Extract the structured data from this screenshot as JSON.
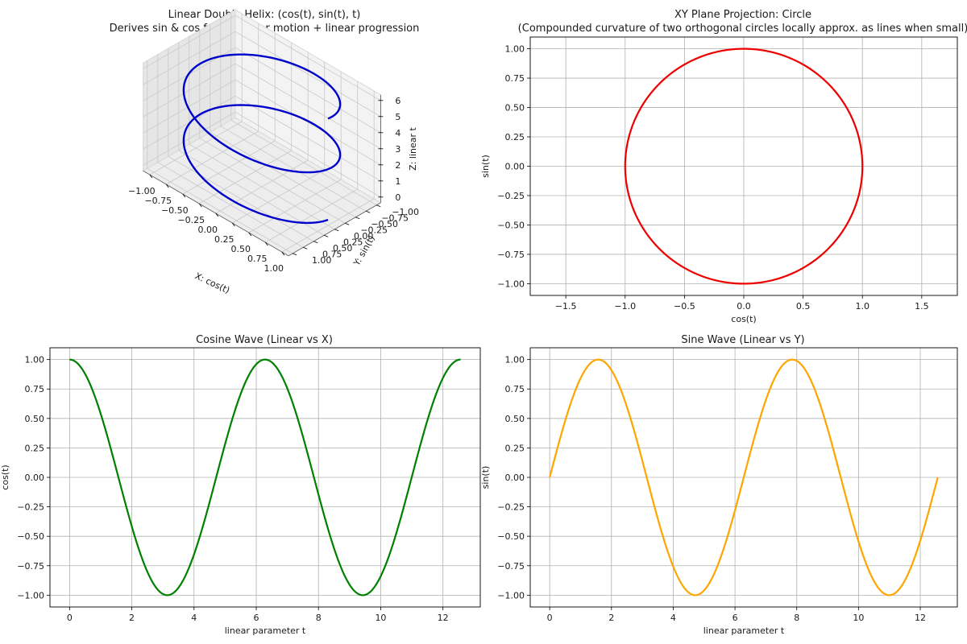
{
  "chart_data": [
    {
      "type": "line3d",
      "title": "Linear Double Helix: (cos(t), sin(t), t)",
      "subtitle": "Derives sin & cos from circular motion + linear progression",
      "xlabel": "X: cos(t)",
      "ylabel": "Y: sin(t)",
      "zlabel": "Z: linear t",
      "x_ticks": [
        "−1.00",
        "−0.75",
        "−0.50",
        "−0.25",
        "0.00",
        "0.25",
        "0.50",
        "0.75",
        "1.00"
      ],
      "y_ticks": [
        "−1.00",
        "−0.75",
        "−0.50",
        "−0.25",
        "0.00",
        "0.25",
        "0.50",
        "0.75",
        "1.00"
      ],
      "z_ticks": [
        "0",
        "1",
        "2",
        "3",
        "4",
        "5",
        "6"
      ],
      "t_range": [
        0,
        12.566
      ],
      "z_scale": 0.5,
      "color": "#0000cc",
      "series": "x = cos(t), y = sin(t), z = t/2"
    },
    {
      "type": "line",
      "title": "XY Plane Projection: Circle",
      "subtitle": "(Compounded curvature of two orthogonal circles locally approx. as lines when small)",
      "xlabel": "cos(t)",
      "ylabel": "sin(t)",
      "xlim": [
        -1.8,
        1.8
      ],
      "ylim": [
        -1.1,
        1.1
      ],
      "x_ticks": [
        "−1.5",
        "−1.0",
        "−0.5",
        "0.0",
        "0.5",
        "1.0",
        "1.5"
      ],
      "x_tick_values": [
        -1.5,
        -1.0,
        -0.5,
        0.0,
        0.5,
        1.0,
        1.5
      ],
      "y_ticks": [
        "−1.00",
        "−0.75",
        "−0.50",
        "−0.25",
        "0.00",
        "0.25",
        "0.50",
        "0.75",
        "1.00"
      ],
      "y_tick_values": [
        -1.0,
        -0.75,
        -0.5,
        -0.25,
        0.0,
        0.25,
        0.5,
        0.75,
        1.0
      ],
      "series": [
        {
          "name": "circle",
          "x": "cos(t)",
          "y": "sin(t)",
          "t_range": [
            0,
            12.566
          ]
        }
      ],
      "color": "#ee0000"
    },
    {
      "type": "line",
      "title": "Cosine Wave (Linear vs X)",
      "xlabel": "linear parameter t",
      "ylabel": "cos(t)",
      "xlim": [
        -0.63,
        13.2
      ],
      "ylim": [
        -1.1,
        1.1
      ],
      "x_ticks": [
        "0",
        "2",
        "4",
        "6",
        "8",
        "10",
        "12"
      ],
      "x_tick_values": [
        0,
        2,
        4,
        6,
        8,
        10,
        12
      ],
      "y_ticks": [
        "−1.00",
        "−0.75",
        "−0.50",
        "−0.25",
        "0.00",
        "0.25",
        "0.50",
        "0.75",
        "1.00"
      ],
      "y_tick_values": [
        -1.0,
        -0.75,
        -0.5,
        -0.25,
        0.0,
        0.25,
        0.5,
        0.75,
        1.0
      ],
      "series": [
        {
          "name": "cos",
          "x": "t",
          "y": "cos(t)",
          "t_range": [
            0,
            12.566
          ]
        }
      ],
      "color": "#008000"
    },
    {
      "type": "line",
      "title": "Sine Wave (Linear vs Y)",
      "xlabel": "linear parameter t",
      "ylabel": "sin(t)",
      "xlim": [
        -0.63,
        13.2
      ],
      "ylim": [
        -1.1,
        1.1
      ],
      "x_ticks": [
        "0",
        "2",
        "4",
        "6",
        "8",
        "10",
        "12"
      ],
      "x_tick_values": [
        0,
        2,
        4,
        6,
        8,
        10,
        12
      ],
      "y_ticks": [
        "−1.00",
        "−0.75",
        "−0.50",
        "−0.25",
        "0.00",
        "0.25",
        "0.50",
        "0.75",
        "1.00"
      ],
      "y_tick_values": [
        -1.0,
        -0.75,
        -0.5,
        -0.25,
        0.0,
        0.25,
        0.5,
        0.75,
        1.0
      ],
      "series": [
        {
          "name": "sin",
          "x": "t",
          "y": "sin(t)",
          "t_range": [
            0,
            12.566
          ]
        }
      ],
      "color": "#ffa500"
    }
  ]
}
